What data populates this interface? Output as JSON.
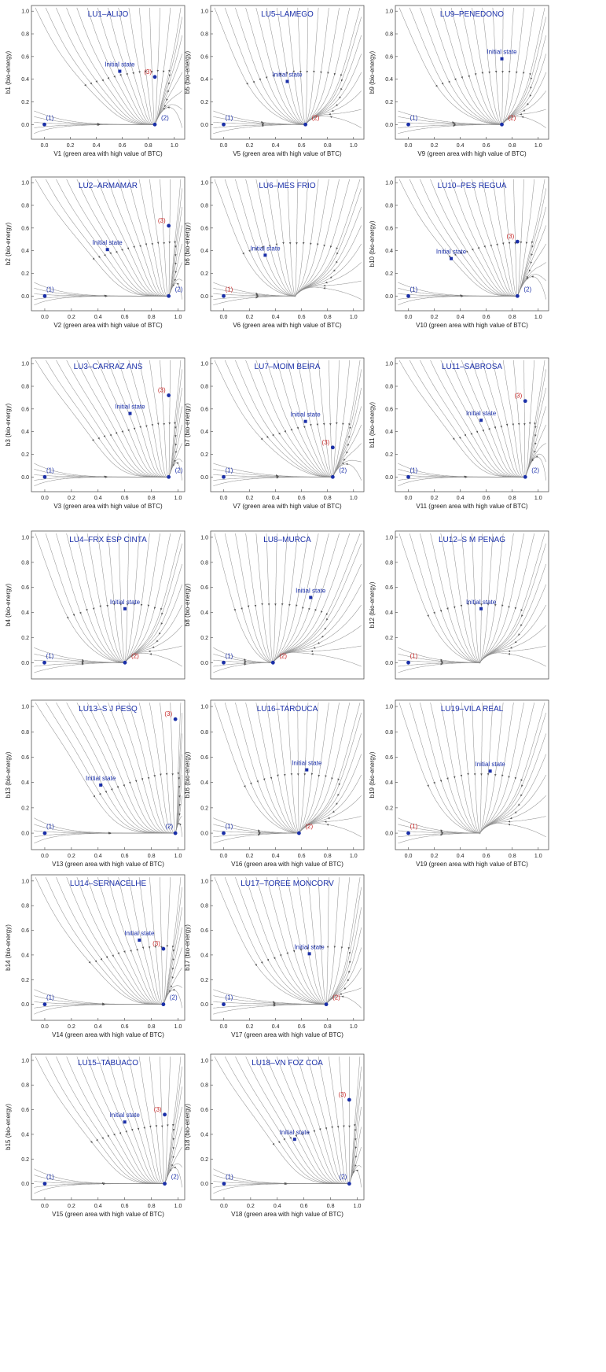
{
  "chart_data": [
    {
      "type": "streamplot",
      "title": "LU1–ALIJO",
      "xlabel": "V1 (green area with high value of BTC)",
      "ylabel": "b1 (bio-energy)",
      "xticks": [
        "0.0",
        "0.2",
        "0.4",
        "0.6",
        "0.8",
        "1.0"
      ],
      "yticks": [
        "0.0",
        "0.2",
        "0.4",
        "0.6",
        "0.8",
        "1.0"
      ],
      "xlim": [
        -0.1,
        1.08
      ],
      "ylim": [
        -0.13,
        1.05
      ],
      "initial_state": {
        "label": "Initial state",
        "x": 0.58,
        "y": 0.47
      },
      "points": [
        {
          "label": "(1)",
          "x": 0.0,
          "y": 0.0,
          "color": "#1a2fa8"
        },
        {
          "label": "(2)",
          "x": 0.85,
          "y": 0.0,
          "color": "#1a2fa8"
        },
        {
          "label": "(3)",
          "x": 0.85,
          "y": 0.42,
          "color": "#c62828"
        }
      ]
    },
    {
      "type": "streamplot",
      "title": "LU5–LAMEGO",
      "xlabel": "V5 (green area with high value of BTC)",
      "ylabel": "b5 (bio-energy)",
      "xticks": [
        "0.0",
        "0.2",
        "0.4",
        "0.6",
        "0.8",
        "1.0"
      ],
      "yticks": [
        "0.0",
        "0.2",
        "0.4",
        "0.6",
        "0.8",
        "1.0"
      ],
      "xlim": [
        -0.1,
        1.08
      ],
      "ylim": [
        -0.13,
        1.05
      ],
      "initial_state": {
        "label": "Initial state",
        "x": 0.49,
        "y": 0.38
      },
      "points": [
        {
          "label": "(1)",
          "x": 0.0,
          "y": 0.0,
          "color": "#1a2fa8"
        },
        {
          "label": "(2)",
          "x": 0.63,
          "y": 0.0,
          "color": "#c62828"
        }
      ]
    },
    {
      "type": "streamplot",
      "title": "LU9–PENEDONO",
      "xlabel": "V9 (green area with high value of BTC)",
      "ylabel": "b9 (bio-energy)",
      "xticks": [
        "0.0",
        "0.2",
        "0.4",
        "0.6",
        "0.8",
        "1.0"
      ],
      "yticks": [
        "0.0",
        "0.2",
        "0.4",
        "0.6",
        "0.8",
        "1.0"
      ],
      "xlim": [
        -0.1,
        1.08
      ],
      "ylim": [
        -0.13,
        1.05
      ],
      "initial_state": {
        "label": "Initial state",
        "x": 0.72,
        "y": 0.58
      },
      "points": [
        {
          "label": "(1)",
          "x": 0.0,
          "y": 0.0,
          "color": "#1a2fa8"
        },
        {
          "label": "(2)",
          "x": 0.72,
          "y": 0.0,
          "color": "#c62828"
        }
      ]
    },
    {
      "type": "streamplot",
      "title": "LU2–ARMAMAR",
      "xlabel": "V2 (green area with high value of BTC)",
      "ylabel": "b2 (bio-energy)",
      "xticks": [
        "0.0",
        "0.2",
        "0.4",
        "0.6",
        "0.8",
        "1.0"
      ],
      "yticks": [
        "0.0",
        "0.2",
        "0.4",
        "0.6",
        "0.8",
        "1.0"
      ],
      "xlim": [
        -0.1,
        1.05
      ],
      "ylim": [
        -0.13,
        1.05
      ],
      "initial_state": {
        "label": "Initial state",
        "x": 0.47,
        "y": 0.41
      },
      "points": [
        {
          "label": "(1)",
          "x": 0.0,
          "y": 0.0,
          "color": "#1a2fa8"
        },
        {
          "label": "(2)",
          "x": 0.93,
          "y": 0.0,
          "color": "#1a2fa8"
        },
        {
          "label": "(3)",
          "x": 0.93,
          "y": 0.62,
          "color": "#c62828"
        }
      ]
    },
    {
      "type": "streamplot",
      "title": "LU6–MES FRIO",
      "xlabel": "V6 (green area with high value of BTC)",
      "ylabel": "b6 (bio-energy)",
      "xticks": [
        "0.0",
        "0.2",
        "0.4",
        "0.6",
        "0.8",
        "1.0"
      ],
      "yticks": [
        "0.0",
        "0.2",
        "0.4",
        "0.6",
        "0.8",
        "1.0"
      ],
      "xlim": [
        -0.1,
        1.08
      ],
      "ylim": [
        -0.13,
        1.05
      ],
      "initial_state": {
        "label": "Initial state",
        "x": 0.32,
        "y": 0.36
      },
      "points": [
        {
          "label": "(1)",
          "x": 0.0,
          "y": 0.0,
          "color": "#c62828"
        }
      ]
    },
    {
      "type": "streamplot",
      "title": "LU10–PES REGUA",
      "xlabel": "V10 (green area with high value of BTC)",
      "ylabel": "b10 (bio-energy)",
      "xticks": [
        "0.0",
        "0.2",
        "0.4",
        "0.6",
        "0.8",
        "1.0"
      ],
      "yticks": [
        "0.0",
        "0.2",
        "0.4",
        "0.6",
        "0.8",
        "1.0"
      ],
      "xlim": [
        -0.1,
        1.08
      ],
      "ylim": [
        -0.13,
        1.05
      ],
      "initial_state": {
        "label": "Initial state",
        "x": 0.33,
        "y": 0.33
      },
      "points": [
        {
          "label": "(1)",
          "x": 0.0,
          "y": 0.0,
          "color": "#1a2fa8"
        },
        {
          "label": "(2)",
          "x": 0.84,
          "y": 0.0,
          "color": "#1a2fa8"
        },
        {
          "label": "(3)",
          "x": 0.84,
          "y": 0.48,
          "color": "#c62828"
        }
      ]
    },
    {
      "type": "streamplot",
      "title": "LU3–CARRAZ ANS",
      "xlabel": "V3 (green area with high value of BTC)",
      "ylabel": "b3 (bio-energy)",
      "xticks": [
        "0.0",
        "0.2",
        "0.4",
        "0.6",
        "0.8",
        "1.0"
      ],
      "yticks": [
        "0.0",
        "0.2",
        "0.4",
        "0.6",
        "0.8",
        "1.0"
      ],
      "xlim": [
        -0.1,
        1.05
      ],
      "ylim": [
        -0.13,
        1.05
      ],
      "initial_state": {
        "label": "Initial state",
        "x": 0.64,
        "y": 0.56
      },
      "points": [
        {
          "label": "(1)",
          "x": 0.0,
          "y": 0.0,
          "color": "#1a2fa8"
        },
        {
          "label": "(2)",
          "x": 0.93,
          "y": 0.0,
          "color": "#1a2fa8"
        },
        {
          "label": "(3)",
          "x": 0.93,
          "y": 0.72,
          "color": "#c62828"
        }
      ]
    },
    {
      "type": "streamplot",
      "title": "LU7–MOIM BEIRA",
      "xlabel": "V7 (green area with high value of BTC)",
      "ylabel": "b7 (bio-energy)",
      "xticks": [
        "0.0",
        "0.2",
        "0.4",
        "0.6",
        "0.8",
        "1.0"
      ],
      "yticks": [
        "0.0",
        "0.2",
        "0.4",
        "0.6",
        "0.8",
        "1.0"
      ],
      "xlim": [
        -0.1,
        1.08
      ],
      "ylim": [
        -0.13,
        1.05
      ],
      "initial_state": {
        "label": "Initial state",
        "x": 0.63,
        "y": 0.49
      },
      "points": [
        {
          "label": "(1)",
          "x": 0.0,
          "y": 0.0,
          "color": "#1a2fa8"
        },
        {
          "label": "(2)",
          "x": 0.84,
          "y": 0.0,
          "color": "#1a2fa8"
        },
        {
          "label": "(3)",
          "x": 0.84,
          "y": 0.26,
          "color": "#c62828"
        }
      ]
    },
    {
      "type": "streamplot",
      "title": "LU11–SABROSA",
      "xlabel": "V11 (green area with high value of BTC)",
      "ylabel": "b11 (bio-energy)",
      "xticks": [
        "0.0",
        "0.2",
        "0.4",
        "0.6",
        "0.8",
        "1.0"
      ],
      "yticks": [
        "0.0",
        "0.2",
        "0.4",
        "0.6",
        "0.8",
        "1.0"
      ],
      "xlim": [
        -0.1,
        1.08
      ],
      "ylim": [
        -0.13,
        1.05
      ],
      "initial_state": {
        "label": "Initial state",
        "x": 0.56,
        "y": 0.5
      },
      "points": [
        {
          "label": "(1)",
          "x": 0.0,
          "y": 0.0,
          "color": "#1a2fa8"
        },
        {
          "label": "(2)",
          "x": 0.9,
          "y": 0.0,
          "color": "#1a2fa8"
        },
        {
          "label": "(3)",
          "x": 0.9,
          "y": 0.67,
          "color": "#c62828"
        }
      ]
    },
    {
      "type": "streamplot",
      "title": "LU4–FRX ESP CINTA",
      "xlabel": "",
      "ylabel": "b4 (bio-energy)",
      "xticks": [],
      "yticks": [
        "0.0",
        "0.2",
        "0.4",
        "0.6",
        "0.8",
        "1.0"
      ],
      "xlim": [
        -0.1,
        1.08
      ],
      "ylim": [
        -0.13,
        1.05
      ],
      "initial_state": {
        "label": "Initial state",
        "x": 0.62,
        "y": 0.43
      },
      "points": [
        {
          "label": "(1)",
          "x": 0.0,
          "y": 0.0,
          "color": "#1a2fa8"
        },
        {
          "label": "(2)",
          "x": 0.62,
          "y": 0.0,
          "color": "#c62828"
        }
      ]
    },
    {
      "type": "streamplot",
      "title": "LU8–MURCA",
      "xlabel": "",
      "ylabel": "b8 (bio-energy)",
      "xticks": [],
      "yticks": [
        "0.0",
        "0.2",
        "0.4",
        "0.6",
        "0.8",
        "1.0"
      ],
      "xlim": [
        -0.1,
        1.08
      ],
      "ylim": [
        -0.13,
        1.05
      ],
      "initial_state": {
        "label": "Initial state",
        "x": 0.67,
        "y": 0.52
      },
      "points": [
        {
          "label": "(1)",
          "x": 0.0,
          "y": 0.0,
          "color": "#1a2fa8"
        },
        {
          "label": "(2)",
          "x": 0.38,
          "y": 0.0,
          "color": "#c62828"
        }
      ]
    },
    {
      "type": "streamplot",
      "title": "LU12–S M PENAG",
      "xlabel": "",
      "ylabel": "b12 (bio-energy)",
      "xticks": [],
      "yticks": [
        "0.0",
        "0.2",
        "0.4",
        "0.6",
        "0.8",
        "1.0"
      ],
      "xlim": [
        -0.1,
        1.08
      ],
      "ylim": [
        -0.13,
        1.05
      ],
      "initial_state": {
        "label": "Initial state",
        "x": 0.56,
        "y": 0.43
      },
      "points": [
        {
          "label": "(1)",
          "x": 0.0,
          "y": 0.0,
          "color": "#c62828"
        }
      ]
    },
    {
      "type": "streamplot",
      "title": "LU13–S J PESQ",
      "xlabel": "V13 (green area with high value of BTC)",
      "ylabel": "b13 (bio-energy)",
      "xticks": [
        "0.0",
        "0.2",
        "0.4",
        "0.6",
        "0.8",
        "1.0"
      ],
      "yticks": [
        "0.0",
        "0.2",
        "0.4",
        "0.6",
        "0.8",
        "1.0"
      ],
      "xlim": [
        -0.1,
        1.05
      ],
      "ylim": [
        -0.13,
        1.05
      ],
      "initial_state": {
        "label": "Initial state",
        "x": 0.42,
        "y": 0.38
      },
      "points": [
        {
          "label": "(1)",
          "x": 0.0,
          "y": 0.0,
          "color": "#1a2fa8"
        },
        {
          "label": "(2)",
          "x": 0.98,
          "y": 0.0,
          "color": "#1a2fa8"
        },
        {
          "label": "(3)",
          "x": 0.98,
          "y": 0.9,
          "color": "#c62828"
        }
      ]
    },
    {
      "type": "streamplot",
      "title": "LU16–TAROUCA",
      "xlabel": "V16 (green area with high value of BTC)",
      "ylabel": "b16 (bio-energy)",
      "xticks": [
        "0.0",
        "0.2",
        "0.4",
        "0.6",
        "0.8",
        "1.0"
      ],
      "yticks": [
        "0.0",
        "0.2",
        "0.4",
        "0.6",
        "0.8",
        "1.0"
      ],
      "xlim": [
        -0.1,
        1.08
      ],
      "ylim": [
        -0.13,
        1.05
      ],
      "initial_state": {
        "label": "Initial state",
        "x": 0.64,
        "y": 0.5
      },
      "points": [
        {
          "label": "(1)",
          "x": 0.0,
          "y": 0.0,
          "color": "#1a2fa8"
        },
        {
          "label": "(2)",
          "x": 0.58,
          "y": 0.0,
          "color": "#c62828"
        }
      ]
    },
    {
      "type": "streamplot",
      "title": "LU19–VILA REAL",
      "xlabel": "V19 (green area with high value of BTC)",
      "ylabel": "b19 (bio-energy)",
      "xticks": [
        "0.0",
        "0.2",
        "0.4",
        "0.6",
        "0.8",
        "1.0"
      ],
      "yticks": [
        "0.0",
        "0.2",
        "0.4",
        "0.6",
        "0.8",
        "1.0"
      ],
      "xlim": [
        -0.1,
        1.08
      ],
      "ylim": [
        -0.13,
        1.05
      ],
      "initial_state": {
        "label": "Initial state",
        "x": 0.63,
        "y": 0.49
      },
      "points": [
        {
          "label": "(1)",
          "x": 0.0,
          "y": 0.0,
          "color": "#c62828"
        }
      ]
    },
    {
      "type": "streamplot",
      "title": "LU14–SERNACELHE",
      "xlabel": "V14 (green area with high value of BTC)",
      "ylabel": "b14 (bio-energy)",
      "xticks": [
        "0.0",
        "0.2",
        "0.4",
        "0.6",
        "0.8",
        "1.0"
      ],
      "yticks": [
        "0.0",
        "0.2",
        "0.4",
        "0.6",
        "0.8",
        "1.0"
      ],
      "xlim": [
        -0.1,
        1.05
      ],
      "ylim": [
        -0.13,
        1.05
      ],
      "initial_state": {
        "label": "Initial state",
        "x": 0.71,
        "y": 0.52
      },
      "points": [
        {
          "label": "(1)",
          "x": 0.0,
          "y": 0.0,
          "color": "#1a2fa8"
        },
        {
          "label": "(2)",
          "x": 0.89,
          "y": 0.0,
          "color": "#1a2fa8"
        },
        {
          "label": "(3)",
          "x": 0.89,
          "y": 0.45,
          "color": "#c62828"
        }
      ]
    },
    {
      "type": "streamplot",
      "title": "LU17–TOREE MONCORV",
      "xlabel": "V17 (green area with high value of BTC)",
      "ylabel": "b17 (bio-energy)",
      "xticks": [
        "0.0",
        "0.2",
        "0.4",
        "0.6",
        "0.8",
        "1.0"
      ],
      "yticks": [
        "0.0",
        "0.2",
        "0.4",
        "0.6",
        "0.8",
        "1.0"
      ],
      "xlim": [
        -0.1,
        1.08
      ],
      "ylim": [
        -0.13,
        1.05
      ],
      "initial_state": {
        "label": "Initial state",
        "x": 0.66,
        "y": 0.41
      },
      "points": [
        {
          "label": "(1)",
          "x": 0.0,
          "y": 0.0,
          "color": "#1a2fa8"
        },
        {
          "label": "(2)",
          "x": 0.79,
          "y": 0.0,
          "color": "#c62828"
        }
      ]
    },
    {
      "type": "streamplot",
      "title": "LU15–TABUACO",
      "xlabel": "V15 (green area with high value of BTC)",
      "ylabel": "b15 (bio-energy)",
      "xticks": [
        "0.0",
        "0.2",
        "0.4",
        "0.6",
        "0.8",
        "1.0"
      ],
      "yticks": [
        "0.0",
        "0.2",
        "0.4",
        "0.6",
        "0.8",
        "1.0"
      ],
      "xlim": [
        -0.1,
        1.05
      ],
      "ylim": [
        -0.13,
        1.05
      ],
      "initial_state": {
        "label": "Initial state",
        "x": 0.6,
        "y": 0.5
      },
      "points": [
        {
          "label": "(1)",
          "x": 0.0,
          "y": 0.0,
          "color": "#1a2fa8"
        },
        {
          "label": "(2)",
          "x": 0.9,
          "y": 0.0,
          "color": "#1a2fa8"
        },
        {
          "label": "(3)",
          "x": 0.9,
          "y": 0.56,
          "color": "#c62828"
        }
      ]
    },
    {
      "type": "streamplot",
      "title": "LU18–VN FOZ COA",
      "xlabel": "V18 (green area with high value of BTC)",
      "ylabel": "b18 (bio-energy)",
      "xticks": [
        "0.0",
        "0.2",
        "0.4",
        "0.6",
        "0.8",
        "1.0"
      ],
      "yticks": [
        "0.0",
        "0.2",
        "0.4",
        "0.6",
        "0.8",
        "1.0"
      ],
      "xlim": [
        -0.1,
        1.05
      ],
      "ylim": [
        -0.13,
        1.05
      ],
      "initial_state": {
        "label": "Initial state",
        "x": 0.53,
        "y": 0.36
      },
      "points": [
        {
          "label": "(1)",
          "x": 0.0,
          "y": 0.0,
          "color": "#1a2fa8"
        },
        {
          "label": "(2)",
          "x": 0.94,
          "y": 0.0,
          "color": "#1a2fa8"
        },
        {
          "label": "(3)",
          "x": 0.94,
          "y": 0.68,
          "color": "#c62828"
        }
      ]
    }
  ]
}
